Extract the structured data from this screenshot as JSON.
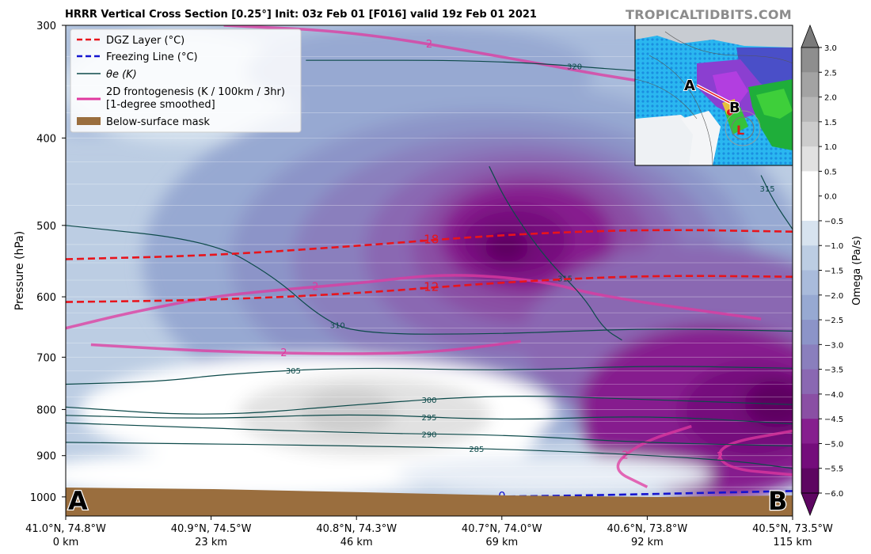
{
  "header": {
    "title": "HRRR Vertical Cross Section [0.25°] Init: 03z Feb 01 [F016] valid 19z Feb 01 2021",
    "brand": "TROPICALTIDBITS.COM"
  },
  "chart_data": {
    "type": "contour",
    "title": "HRRR Vertical Cross Section [0.25°] Init: 03z Feb 01 [F016] valid 19z Feb 01 2021",
    "ylabel": "Pressure (hPa)",
    "y_scale": "log",
    "ylim": [
      1050,
      300
    ],
    "y_ticks": [
      300,
      400,
      500,
      600,
      700,
      800,
      900,
      1000
    ],
    "x_ticks": [
      {
        "loc": "41.0°N, 74.8°W",
        "km": "0 km"
      },
      {
        "loc": "40.9°N, 74.5°W",
        "km": "23 km"
      },
      {
        "loc": "40.8°N, 74.3°W",
        "km": "46 km"
      },
      {
        "loc": "40.7°N, 74.0°W",
        "km": "69 km"
      },
      {
        "loc": "40.6°N, 73.8°W",
        "km": "92 km"
      },
      {
        "loc": "40.5°N, 73.5°W",
        "km": "115 km"
      }
    ],
    "xlim_km": [
      0,
      115
    ],
    "endpoints": [
      "A",
      "B"
    ],
    "legend": {
      "placement": "top-left",
      "entries": [
        {
          "label": "DGZ Layer (°C)",
          "style": "dashed",
          "color": "#e8141c"
        },
        {
          "label": "Freezing Line (°C)",
          "style": "dashed",
          "color": "#1414d0"
        },
        {
          "label": "θe (K)",
          "style": "solid",
          "color": "#0d4a4a"
        },
        {
          "label": "2D frontogenesis (K / 100km / 3hr)",
          "label2": "[1-degree smoothed]",
          "style": "solid",
          "color": "#e0389f"
        },
        {
          "label": "Below-surface mask",
          "style": "patch",
          "color": "#9a6e3e"
        }
      ]
    },
    "colorbar": {
      "label": "Omega (Pa/s)",
      "ticks": [
        "3.0",
        "2.5",
        "2.0",
        "1.5",
        "1.0",
        "0.5",
        "0.0",
        "−0.5",
        "−1.0",
        "−1.5",
        "−2.0",
        "−2.5",
        "−3.0",
        "−3.5",
        "−4.0",
        "−4.5",
        "−5.0",
        "−5.5",
        "−6.0"
      ],
      "colors": [
        "#7a7a7a",
        "#8e8e8e",
        "#a3a3a3",
        "#b7b7b7",
        "#cccccc",
        "#e1e1e1",
        "#ffffff",
        "#ffffff",
        "#d7e3ef",
        "#bccde3",
        "#a9bbdb",
        "#97a9d2",
        "#8c94c8",
        "#8a7fbd",
        "#8a68b2",
        "#8a4fa4",
        "#861f8e",
        "#740d7b",
        "#5d0661"
      ]
    },
    "theta_e_contours": [
      {
        "value": 285,
        "label": "285",
        "points": [
          [
            0,
            870
          ],
          [
            50,
            878
          ],
          [
            80,
            890
          ],
          [
            105,
            910
          ],
          [
            115,
            930
          ]
        ]
      },
      {
        "value": 290,
        "label": "290",
        "points": [
          [
            0,
            828
          ],
          [
            46,
            850
          ],
          [
            69,
            853
          ],
          [
            90,
            870
          ],
          [
            115,
            878
          ]
        ]
      },
      {
        "value": 295,
        "label": "295",
        "points": [
          [
            0,
            812
          ],
          [
            23,
            820
          ],
          [
            46,
            808
          ],
          [
            69,
            823
          ],
          [
            92,
            812
          ],
          [
            115,
            830
          ]
        ]
      },
      {
        "value": 300,
        "label": "300",
        "points": [
          [
            0,
            795
          ],
          [
            23,
            815
          ],
          [
            46,
            790
          ],
          [
            69,
            770
          ],
          [
            92,
            780
          ],
          [
            115,
            790
          ]
        ]
      },
      {
        "value": 305,
        "label": "305",
        "points": [
          [
            0,
            750
          ],
          [
            15,
            745
          ],
          [
            26,
            730
          ],
          [
            46,
            718
          ],
          [
            69,
            725
          ],
          [
            92,
            715
          ],
          [
            115,
            720
          ]
        ]
      },
      {
        "value": 310,
        "label": "310",
        "points": [
          [
            0,
            500
          ],
          [
            23,
            520
          ],
          [
            33,
            570
          ],
          [
            40,
            630
          ],
          [
            46,
            660
          ],
          [
            69,
            660
          ],
          [
            92,
            650
          ],
          [
            115,
            655
          ]
        ]
      },
      {
        "value": 315,
        "label": "315",
        "points": [
          [
            67,
            430
          ],
          [
            70,
            475
          ],
          [
            76,
            545
          ],
          [
            82,
            600
          ],
          [
            85,
            650
          ],
          [
            88,
            670
          ]
        ]
      },
      {
        "value": 315,
        "label": "315",
        "points": [
          [
            110,
            440
          ],
          [
            112,
            470
          ],
          [
            115,
            505
          ]
        ]
      },
      {
        "value": 320,
        "label": "320",
        "points": [
          [
            38,
            328
          ],
          [
            69,
            328
          ],
          [
            92,
            338
          ],
          [
            115,
            345
          ]
        ]
      }
    ],
    "dgz_lines": [
      {
        "value": -18,
        "label": "-18",
        "points": [
          [
            0,
            545
          ],
          [
            23,
            540
          ],
          [
            46,
            527
          ],
          [
            69,
            512
          ],
          [
            92,
            505
          ],
          [
            115,
            508
          ]
        ]
      },
      {
        "value": -12,
        "label": "-12",
        "points": [
          [
            0,
            608
          ],
          [
            23,
            605
          ],
          [
            46,
            595
          ],
          [
            69,
            578
          ],
          [
            92,
            568
          ],
          [
            115,
            570
          ]
        ]
      }
    ],
    "freezing_line": {
      "value": 0,
      "label": "0",
      "points": [
        [
          63,
          1000
        ],
        [
          80,
          997
        ],
        [
          115,
          985
        ]
      ]
    },
    "frontogenesis": [
      {
        "value": 2,
        "label": "2",
        "points": [
          [
            25,
            300
          ],
          [
            46,
            305
          ],
          [
            69,
            325
          ],
          [
            92,
            348
          ],
          [
            115,
            362
          ]
        ]
      },
      {
        "value": 2,
        "label": "2",
        "points": [
          [
            0,
            650
          ],
          [
            10,
            625
          ],
          [
            23,
            600
          ],
          [
            33,
            590
          ],
          [
            46,
            580
          ],
          [
            60,
            565
          ],
          [
            75,
            575
          ],
          [
            85,
            600
          ],
          [
            110,
            635
          ]
        ]
      },
      {
        "value": 2,
        "label": "2",
        "points": [
          [
            4,
            678
          ],
          [
            23,
            690
          ],
          [
            46,
            695
          ],
          [
            60,
            690
          ],
          [
            72,
            672
          ]
        ]
      },
      {
        "value": 2,
        "label": "2",
        "points": [
          [
            92,
            975
          ],
          [
            86,
            930
          ],
          [
            91,
            870
          ],
          [
            99,
            835
          ]
        ]
      },
      {
        "value": 2,
        "label": "2",
        "points": [
          [
            115,
            945
          ],
          [
            104,
            930
          ],
          [
            103,
            875
          ],
          [
            115,
            845
          ]
        ]
      }
    ]
  }
}
